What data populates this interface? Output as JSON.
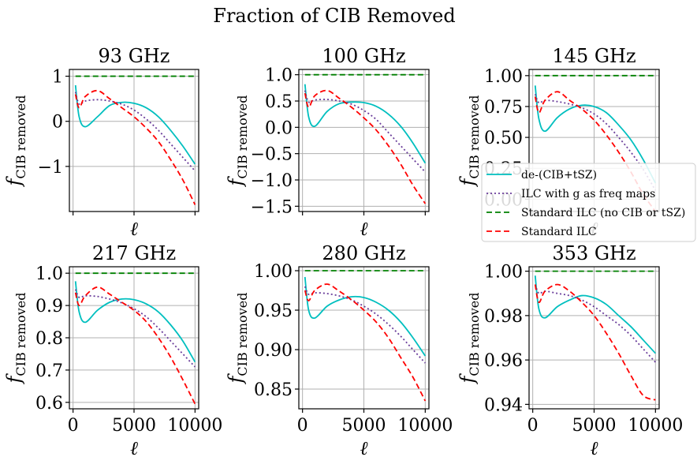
{
  "figure": {
    "suptitle": "Fraction of CIB Removed",
    "xlabel": "ℓ",
    "ylabel_main": "f",
    "ylabel_sub": "CIB removed"
  },
  "legend": {
    "placement": "right, overlapping 145 GHz panel",
    "entries": [
      {
        "label": "de-(CIB+tSZ)",
        "color": "#00bfbf",
        "style": "solid"
      },
      {
        "label": "ILC with g as freq maps",
        "color": "#6a3d9a",
        "style": "dotted"
      },
      {
        "label": "Standard ILC (no CIB or tSZ)",
        "color": "#008000",
        "style": "dashed"
      },
      {
        "label": "Standard ILC",
        "color": "#ff0000",
        "style": "dashed"
      }
    ]
  },
  "chart_data": [
    {
      "type": "line",
      "title": "93 GHz",
      "xlim": [
        -300,
        10300
      ],
      "ylim": [
        -2.0,
        1.15
      ],
      "xticks": [
        0,
        5000,
        10000
      ],
      "xtick_labels": [
        "",
        "",
        ""
      ],
      "yticks": [
        -1,
        0,
        1
      ],
      "ytick_labels": [
        "−1",
        "0",
        "1"
      ],
      "x": [
        200,
        500,
        1000,
        2000,
        3000,
        4000,
        5000,
        6000,
        7000,
        8000,
        9000,
        10000
      ],
      "series": [
        {
          "name": "de-(CIB+tSZ)",
          "values": [
            0.8,
            0.1,
            -0.12,
            0.1,
            0.35,
            0.42,
            0.4,
            0.3,
            0.1,
            -0.2,
            -0.55,
            -0.95
          ]
        },
        {
          "name": "ILC with g as freq maps",
          "values": [
            0.65,
            0.38,
            0.45,
            0.48,
            0.45,
            0.38,
            0.25,
            0.05,
            -0.2,
            -0.5,
            -0.8,
            -1.1
          ]
        },
        {
          "name": "Standard ILC (no CIB or tSZ)",
          "values": [
            1,
            1,
            1,
            1,
            1,
            1,
            1,
            1,
            1,
            1,
            1,
            1
          ]
        },
        {
          "name": "Standard ILC",
          "values": [
            0.6,
            0.3,
            0.55,
            0.68,
            0.5,
            0.3,
            0.1,
            -0.15,
            -0.45,
            -0.85,
            -1.3,
            -1.85
          ]
        }
      ]
    },
    {
      "type": "line",
      "title": "100 GHz",
      "xlim": [
        -300,
        10300
      ],
      "ylim": [
        -1.6,
        1.1
      ],
      "xticks": [
        0,
        5000,
        10000
      ],
      "xtick_labels": [
        "",
        "",
        ""
      ],
      "yticks": [
        -1.5,
        -1.0,
        -0.5,
        0.0,
        0.5,
        1.0
      ],
      "ytick_labels": [
        "−1.5",
        "−1.0",
        "−0.5",
        "0.0",
        "0.5",
        "1.0"
      ],
      "x": [
        200,
        500,
        1000,
        2000,
        3000,
        4000,
        5000,
        6000,
        7000,
        8000,
        9000,
        10000
      ],
      "series": [
        {
          "name": "de-(CIB+tSZ)",
          "values": [
            0.82,
            0.2,
            0.02,
            0.3,
            0.45,
            0.48,
            0.47,
            0.4,
            0.25,
            0.02,
            -0.3,
            -0.68
          ]
        },
        {
          "name": "ILC with g as freq maps",
          "values": [
            0.7,
            0.48,
            0.52,
            0.53,
            0.5,
            0.44,
            0.32,
            0.15,
            -0.1,
            -0.35,
            -0.6,
            -0.85
          ]
        },
        {
          "name": "Standard ILC (no CIB or tSZ)",
          "values": [
            1,
            1,
            1,
            1,
            1,
            1,
            1,
            1,
            1,
            1,
            1,
            1
          ]
        },
        {
          "name": "Standard ILC",
          "values": [
            0.65,
            0.38,
            0.6,
            0.7,
            0.55,
            0.38,
            0.18,
            -0.05,
            -0.35,
            -0.7,
            -1.1,
            -1.45
          ]
        }
      ]
    },
    {
      "type": "line",
      "title": "145 GHz",
      "xlim": [
        -300,
        10300
      ],
      "ylim": [
        -0.1,
        1.05
      ],
      "xticks": [
        0,
        5000,
        10000
      ],
      "xtick_labels": [
        "",
        "",
        ""
      ],
      "yticks": [
        0,
        0.25,
        0.5,
        0.75,
        1.0
      ],
      "ytick_labels": [
        "0.00",
        "0.25",
        "0.50",
        "0.75",
        "1.00"
      ],
      "x": [
        200,
        500,
        1000,
        2000,
        3000,
        4000,
        5000,
        6000,
        7000,
        8000,
        9000,
        10000
      ],
      "series": [
        {
          "name": "de-(CIB+tSZ)",
          "values": [
            0.92,
            0.65,
            0.55,
            0.66,
            0.73,
            0.76,
            0.75,
            0.7,
            0.6,
            0.48,
            0.32,
            0.13
          ]
        },
        {
          "name": "ILC with g as freq maps",
          "values": [
            0.85,
            0.78,
            0.8,
            0.79,
            0.77,
            0.74,
            0.69,
            0.61,
            0.5,
            0.38,
            0.24,
            0.07
          ]
        },
        {
          "name": "Standard ILC (no CIB or tSZ)",
          "values": [
            1,
            1,
            1,
            1,
            1,
            1,
            1,
            1,
            1,
            1,
            1,
            1
          ]
        },
        {
          "name": "Standard ILC",
          "values": [
            0.83,
            0.7,
            0.8,
            0.87,
            0.8,
            0.73,
            0.64,
            0.52,
            0.38,
            0.22,
            0.04,
            -0.1
          ]
        }
      ]
    },
    {
      "type": "line",
      "title": "217 GHz",
      "xlim": [
        -300,
        10300
      ],
      "ylim": [
        0.58,
        1.02
      ],
      "xticks": [
        0,
        5000,
        10000
      ],
      "xtick_labels": [
        "0",
        "5000",
        "10000"
      ],
      "yticks": [
        0.6,
        0.7,
        0.8,
        0.9,
        1.0
      ],
      "ytick_labels": [
        "0.6",
        "0.7",
        "0.8",
        "0.9",
        "1.0"
      ],
      "x": [
        200,
        500,
        1000,
        2000,
        3000,
        4000,
        5000,
        6000,
        7000,
        8000,
        9000,
        10000
      ],
      "series": [
        {
          "name": "de-(CIB+tSZ)",
          "values": [
            0.975,
            0.88,
            0.848,
            0.885,
            0.91,
            0.92,
            0.918,
            0.905,
            0.88,
            0.84,
            0.79,
            0.725
          ]
        },
        {
          "name": "ILC with g as freq maps",
          "values": [
            0.95,
            0.925,
            0.93,
            0.928,
            0.92,
            0.908,
            0.89,
            0.865,
            0.83,
            0.79,
            0.75,
            0.71
          ]
        },
        {
          "name": "Standard ILC (no CIB or tSZ)",
          "values": [
            1,
            1,
            1,
            1,
            1,
            1,
            1,
            1,
            1,
            1,
            1,
            1
          ]
        },
        {
          "name": "Standard ILC",
          "values": [
            0.94,
            0.9,
            0.93,
            0.957,
            0.935,
            0.91,
            0.885,
            0.85,
            0.8,
            0.74,
            0.67,
            0.595
          ]
        }
      ]
    },
    {
      "type": "line",
      "title": "280 GHz",
      "xlim": [
        -300,
        10300
      ],
      "ylim": [
        0.825,
        1.005
      ],
      "xticks": [
        0,
        5000,
        10000
      ],
      "xtick_labels": [
        "0",
        "5000",
        "10000"
      ],
      "yticks": [
        0.85,
        0.9,
        0.95,
        1.0
      ],
      "ytick_labels": [
        "0.85",
        "0.90",
        "0.95",
        "1.00"
      ],
      "x": [
        200,
        500,
        1000,
        2000,
        3000,
        4000,
        5000,
        6000,
        7000,
        8000,
        9000,
        10000
      ],
      "series": [
        {
          "name": "de-(CIB+tSZ)",
          "values": [
            0.992,
            0.95,
            0.94,
            0.955,
            0.963,
            0.967,
            0.966,
            0.96,
            0.95,
            0.935,
            0.915,
            0.892
          ]
        },
        {
          "name": "ILC with g as freq maps",
          "values": [
            0.98,
            0.97,
            0.972,
            0.971,
            0.968,
            0.963,
            0.955,
            0.945,
            0.932,
            0.917,
            0.9,
            0.883
          ]
        },
        {
          "name": "Standard ILC (no CIB or tSZ)",
          "values": [
            1,
            1,
            1,
            1,
            1,
            1,
            1,
            1,
            1,
            1,
            1,
            1
          ]
        },
        {
          "name": "Standard ILC",
          "values": [
            0.975,
            0.962,
            0.975,
            0.983,
            0.974,
            0.963,
            0.95,
            0.935,
            0.915,
            0.89,
            0.865,
            0.835
          ]
        }
      ]
    },
    {
      "type": "line",
      "title": "353 GHz",
      "xlim": [
        -300,
        10300
      ],
      "ylim": [
        0.938,
        1.002
      ],
      "xticks": [
        0,
        5000,
        10000
      ],
      "xtick_labels": [
        "0",
        "5000",
        "10000"
      ],
      "yticks": [
        0.94,
        0.96,
        0.98,
        1.0
      ],
      "ytick_labels": [
        "0.94",
        "0.96",
        "0.98",
        "1.00"
      ],
      "x": [
        200,
        500,
        1000,
        2000,
        3000,
        4000,
        5000,
        6000,
        7000,
        8000,
        9000,
        10000
      ],
      "series": [
        {
          "name": "de-(CIB+tSZ)",
          "values": [
            0.998,
            0.983,
            0.979,
            0.984,
            0.987,
            0.989,
            0.988,
            0.985,
            0.98,
            0.975,
            0.969,
            0.963
          ]
        },
        {
          "name": "ILC with g as freq maps",
          "values": [
            0.994,
            0.99,
            0.991,
            0.99,
            0.989,
            0.987,
            0.984,
            0.98,
            0.976,
            0.971,
            0.965,
            0.959
          ]
        },
        {
          "name": "Standard ILC (no CIB or tSZ)",
          "values": [
            1,
            1,
            1,
            1,
            1,
            1,
            1,
            1,
            1,
            1,
            1,
            1
          ]
        },
        {
          "name": "Standard ILC",
          "values": [
            0.994,
            0.986,
            0.991,
            0.994,
            0.991,
            0.986,
            0.98,
            0.972,
            0.963,
            0.953,
            0.944,
            0.942
          ]
        }
      ]
    }
  ]
}
